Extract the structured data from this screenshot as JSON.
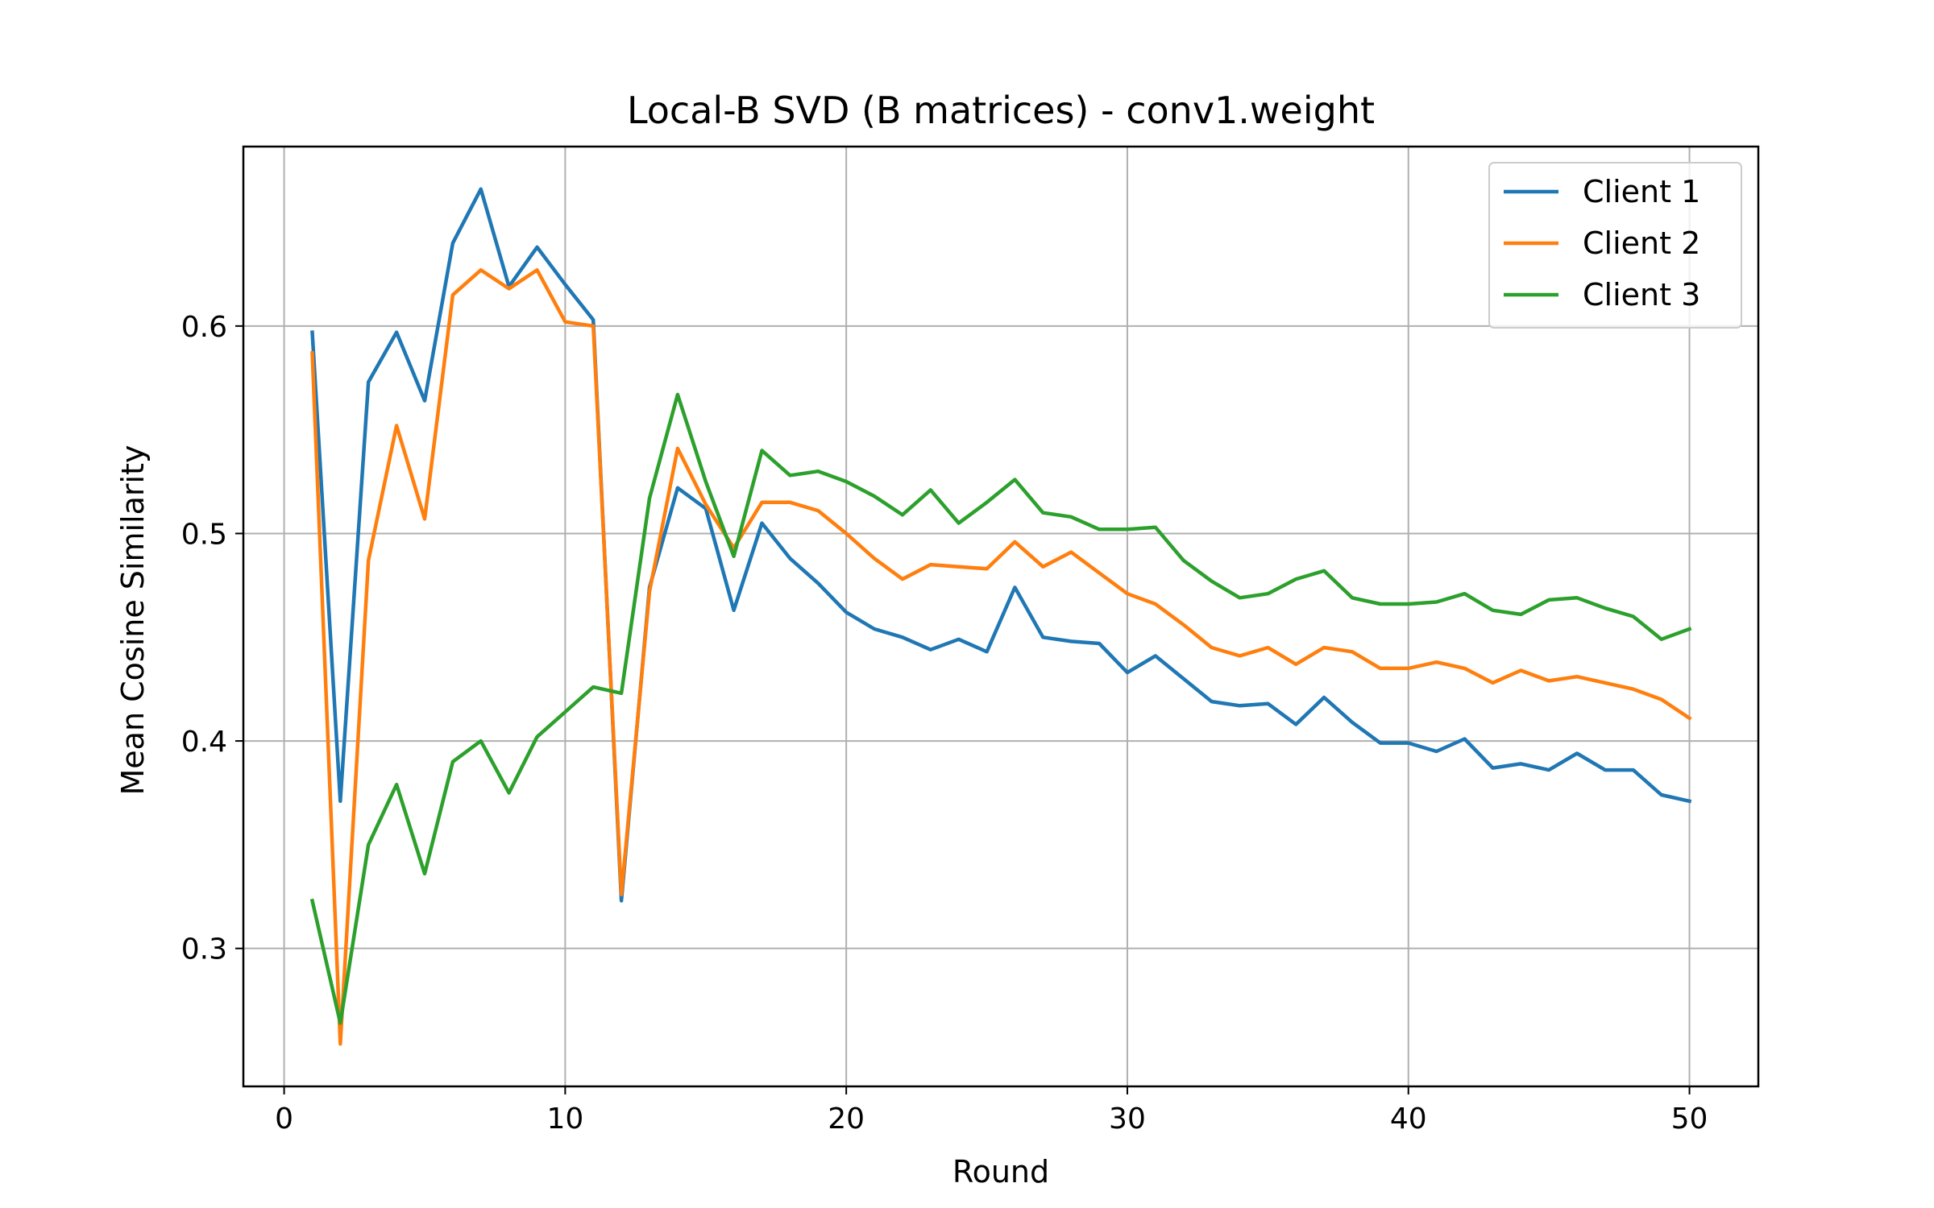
{
  "chart_data": {
    "type": "line",
    "title": "Local-B SVD (B matrices) - conv1.weight",
    "xlabel": "Round",
    "ylabel": "Mean Cosine Similarity",
    "xlim": [
      -1.45,
      52.45
    ],
    "ylim": [
      0.2335,
      0.6865
    ],
    "xticks": [
      0,
      10,
      20,
      30,
      40,
      50
    ],
    "xtick_labels": [
      "0",
      "10",
      "20",
      "30",
      "40",
      "50"
    ],
    "yticks": [
      0.3,
      0.4,
      0.5,
      0.6
    ],
    "ytick_labels": [
      "0.3",
      "0.4",
      "0.5",
      "0.6"
    ],
    "grid": true,
    "legend_position": "top-right",
    "x": [
      1,
      2,
      3,
      4,
      5,
      6,
      7,
      8,
      9,
      10,
      11,
      12,
      13,
      14,
      15,
      16,
      17,
      18,
      19,
      20,
      21,
      22,
      23,
      24,
      25,
      26,
      27,
      28,
      29,
      30,
      31,
      32,
      33,
      34,
      35,
      36,
      37,
      38,
      39,
      40,
      41,
      42,
      43,
      44,
      45,
      46,
      47,
      48,
      49,
      50
    ],
    "series": [
      {
        "name": "Client 1",
        "color": "#1f77b4",
        "values": [
          0.597,
          0.371,
          0.573,
          0.597,
          0.564,
          0.64,
          0.666,
          0.619,
          0.638,
          0.62,
          0.603,
          0.323,
          0.474,
          0.522,
          0.512,
          0.463,
          0.505,
          0.488,
          0.476,
          0.462,
          0.454,
          0.45,
          0.444,
          0.449,
          0.443,
          0.474,
          0.45,
          0.448,
          0.447,
          0.433,
          0.441,
          0.43,
          0.419,
          0.417,
          0.418,
          0.408,
          0.421,
          0.409,
          0.399,
          0.399,
          0.395,
          0.401,
          0.387,
          0.389,
          0.386,
          0.394,
          0.386,
          0.386,
          0.374,
          0.371
        ]
      },
      {
        "name": "Client 2",
        "color": "#ff7f0e",
        "values": [
          0.587,
          0.254,
          0.487,
          0.552,
          0.507,
          0.615,
          0.627,
          0.618,
          0.627,
          0.602,
          0.6,
          0.326,
          0.472,
          0.541,
          0.514,
          0.493,
          0.515,
          0.515,
          0.511,
          0.5,
          0.488,
          0.478,
          0.485,
          0.484,
          0.483,
          0.496,
          0.484,
          0.491,
          0.481,
          0.471,
          0.466,
          0.456,
          0.445,
          0.441,
          0.445,
          0.437,
          0.445,
          0.443,
          0.435,
          0.435,
          0.438,
          0.435,
          0.428,
          0.434,
          0.429,
          0.431,
          0.428,
          0.425,
          0.42,
          0.411
        ]
      },
      {
        "name": "Client 3",
        "color": "#2ca02c",
        "values": [
          0.323,
          0.264,
          0.35,
          0.379,
          0.336,
          0.39,
          0.4,
          0.375,
          0.402,
          0.414,
          0.426,
          0.423,
          0.517,
          0.567,
          0.525,
          0.489,
          0.54,
          0.528,
          0.53,
          0.525,
          0.518,
          0.509,
          0.521,
          0.505,
          0.515,
          0.526,
          0.51,
          0.508,
          0.502,
          0.502,
          0.503,
          0.487,
          0.477,
          0.469,
          0.471,
          0.478,
          0.482,
          0.469,
          0.466,
          0.466,
          0.467,
          0.471,
          0.463,
          0.461,
          0.468,
          0.469,
          0.464,
          0.46,
          0.449,
          0.454
        ]
      }
    ]
  }
}
